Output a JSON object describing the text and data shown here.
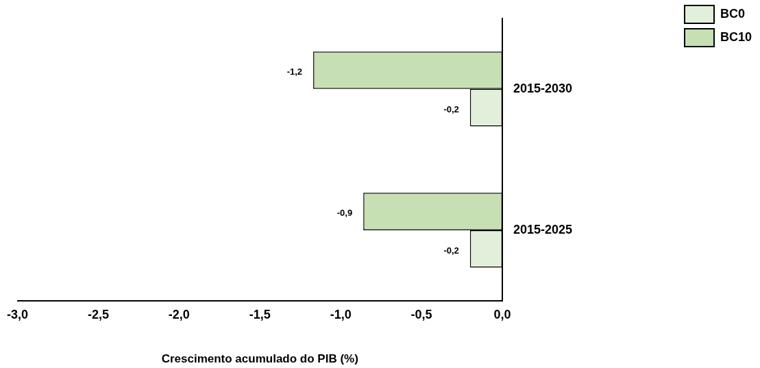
{
  "chart_data": {
    "type": "bar",
    "orientation": "horizontal",
    "xlabel": "Crescimento acumulado do PIB (%)",
    "categories": [
      "2015-2030",
      "2015-2025"
    ],
    "series": [
      {
        "name": "BC0",
        "color": "#e2efda",
        "values": [
          -0.2,
          -0.2
        ],
        "value_labels": [
          "-0,2",
          "-0,2"
        ]
      },
      {
        "name": "BC10",
        "color": "#c6e0b4",
        "values": [
          -1.17,
          -0.86
        ],
        "value_labels": [
          "-1,2",
          "-0,9"
        ]
      }
    ],
    "xlim": [
      -3,
      0
    ],
    "xticks": [
      {
        "value": -3,
        "label": "-3,0"
      },
      {
        "value": -2.5,
        "label": "-2,5"
      },
      {
        "value": -2,
        "label": "-2,0"
      },
      {
        "value": -1.5,
        "label": "-1,5"
      },
      {
        "value": -1,
        "label": "-1,0"
      },
      {
        "value": -0.5,
        "label": "-0,5"
      },
      {
        "value": 0,
        "label": "0,0"
      }
    ],
    "grid": false,
    "legend": "top right"
  }
}
